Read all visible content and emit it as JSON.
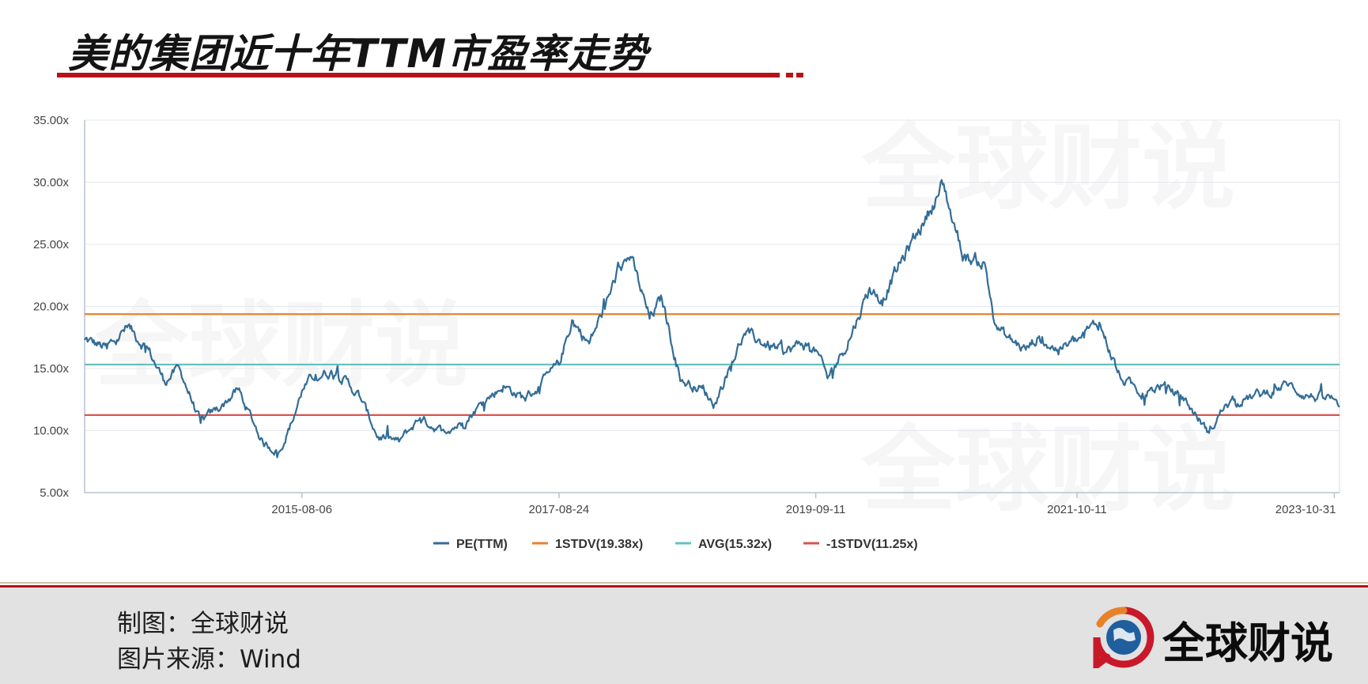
{
  "page": {
    "title": "美的集团近十年TTM市盈率走势",
    "watermark": "全球财说",
    "footer": {
      "credit_line1": "制图：全球财说",
      "credit_line2": "图片来源：Wind",
      "logo_text": "全球财说"
    }
  },
  "colors": {
    "title_rule": "#b5121b",
    "pe": "#336d96",
    "stdv_plus": "#e8822a",
    "avg": "#66c0bf",
    "stdv_minus": "#d9534f",
    "footer_bg": "#e2e2e2"
  },
  "chart_data": {
    "type": "line",
    "ylim": [
      5,
      35
    ],
    "y_ticks": [
      "35.00x",
      "30.00x",
      "25.00x",
      "20.00x",
      "15.00x",
      "10.00x",
      "5.00x"
    ],
    "x_ticks": [
      "2015-08-06",
      "2017-08-24",
      "2019-09-11",
      "2021-10-11",
      "2023-10-31"
    ],
    "grid": true,
    "legend_position": "bottom",
    "series": [
      {
        "name": "PE(TTM)",
        "color": "#336d96",
        "x": [
          "2013-11-11",
          "2014-01-15",
          "2014-03-15",
          "2014-05-10",
          "2014-07-01",
          "2014-08-15",
          "2014-10-15",
          "2014-12-15",
          "2015-02-01",
          "2015-04-15",
          "2015-06-01",
          "2015-07-15",
          "2015-08-06",
          "2015-09-15",
          "2015-11-15",
          "2016-01-20",
          "2016-03-15",
          "2016-05-15",
          "2016-07-15",
          "2016-09-15",
          "2016-11-15",
          "2017-01-15",
          "2017-03-15",
          "2017-05-15",
          "2017-07-01",
          "2017-08-24",
          "2017-10-01",
          "2017-11-20",
          "2018-01-20",
          "2018-02-15",
          "2018-03-20",
          "2018-05-15",
          "2018-06-20",
          "2018-08-15",
          "2018-10-15",
          "2018-11-20",
          "2019-01-01",
          "2019-02-15",
          "2019-04-15",
          "2019-06-15",
          "2019-08-01",
          "2019-09-11",
          "2019-10-15",
          "2019-12-15",
          "2020-02-15",
          "2020-03-20",
          "2020-05-15",
          "2020-07-15",
          "2020-09-15",
          "2020-11-15",
          "2021-01-15",
          "2021-02-15",
          "2021-03-20",
          "2021-05-15",
          "2021-06-20",
          "2021-08-15",
          "2021-10-11",
          "2021-12-15",
          "2022-02-15",
          "2022-04-20",
          "2022-06-15",
          "2022-08-15",
          "2022-10-31",
          "2022-12-15",
          "2023-02-15",
          "2023-04-15",
          "2023-06-15",
          "2023-08-15",
          "2023-10-31",
          "2023-11-15"
        ],
        "values": [
          17.3,
          16.6,
          18.3,
          16.8,
          14.0,
          15.0,
          10.6,
          12.0,
          13.3,
          9.0,
          8.3,
          11.2,
          13.2,
          14.5,
          14.8,
          12.8,
          9.5,
          9.1,
          11.0,
          10.0,
          10.6,
          12.3,
          13.6,
          12.6,
          13.6,
          15.3,
          18.9,
          17.0,
          21.0,
          23.2,
          24.0,
          19.0,
          20.6,
          14.0,
          13.4,
          12.1,
          15.0,
          17.8,
          17.0,
          16.3,
          17.0,
          16.5,
          14.2,
          17.2,
          21.5,
          20.5,
          23.5,
          26.5,
          29.8,
          24.0,
          23.5,
          18.5,
          17.5,
          16.5,
          17.5,
          16.5,
          17.2,
          18.7,
          14.2,
          13.0,
          13.6,
          12.7,
          9.8,
          12.0,
          12.6,
          13.0,
          13.7,
          12.8,
          12.5,
          11.9
        ]
      },
      {
        "name": "1STDV(19.38x)",
        "color": "#e8822a",
        "value": 19.38
      },
      {
        "name": "AVG(15.32x)",
        "color": "#66c0bf",
        "value": 15.32
      },
      {
        "name": "-1STDV(11.25x)",
        "color": "#d9534f",
        "value": 11.25
      }
    ]
  }
}
